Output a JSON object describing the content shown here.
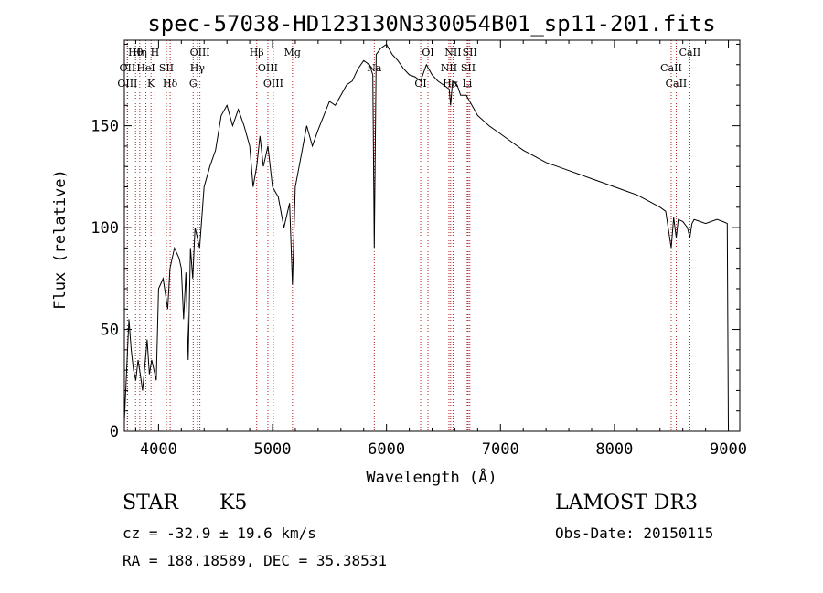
{
  "chart_data": {
    "type": "line",
    "title": "spec-57038-HD123130N330054B01_sp11-201.fits",
    "xlabel": "Wavelength (Å)",
    "ylabel": "Flux (relative)",
    "xlim": [
      3700,
      9100
    ],
    "ylim": [
      0,
      192
    ],
    "x_ticks": [
      4000,
      5000,
      6000,
      7000,
      8000,
      9000
    ],
    "y_ticks": [
      0,
      50,
      100,
      150
    ],
    "grid": false,
    "series": [
      {
        "name": "flux",
        "x": [
          3700,
          3720,
          3740,
          3760,
          3780,
          3800,
          3820,
          3840,
          3860,
          3880,
          3900,
          3920,
          3940,
          3960,
          3980,
          4000,
          4040,
          4080,
          4100,
          4140,
          4180,
          4200,
          4220,
          4240,
          4260,
          4280,
          4300,
          4320,
          4340,
          4360,
          4400,
          4450,
          4500,
          4550,
          4600,
          4650,
          4700,
          4750,
          4800,
          4830,
          4861,
          4890,
          4920,
          4960,
          5000,
          5050,
          5100,
          5150,
          5175,
          5200,
          5250,
          5300,
          5350,
          5400,
          5450,
          5500,
          5550,
          5600,
          5650,
          5700,
          5750,
          5800,
          5850,
          5880,
          5893,
          5910,
          5950,
          6000,
          6050,
          6100,
          6150,
          6200,
          6250,
          6300,
          6350,
          6400,
          6450,
          6500,
          6550,
          6563,
          6580,
          6620,
          6650,
          6700,
          6750,
          6800,
          6900,
          7000,
          7100,
          7200,
          7300,
          7400,
          7500,
          7600,
          7700,
          7800,
          7900,
          8000,
          8100,
          8200,
          8300,
          8400,
          8450,
          8498,
          8520,
          8542,
          8560,
          8600,
          8640,
          8662,
          8680,
          8700,
          8750,
          8800,
          8850,
          8900,
          8950,
          8990,
          9000
        ],
        "values": [
          5,
          30,
          55,
          40,
          30,
          25,
          35,
          28,
          20,
          32,
          45,
          28,
          35,
          30,
          25,
          70,
          75,
          60,
          80,
          90,
          85,
          80,
          55,
          78,
          35,
          90,
          75,
          100,
          95,
          90,
          120,
          130,
          138,
          155,
          160,
          150,
          158,
          150,
          140,
          120,
          130,
          145,
          130,
          140,
          120,
          115,
          100,
          112,
          72,
          120,
          135,
          150,
          140,
          148,
          155,
          162,
          160,
          165,
          170,
          172,
          178,
          182,
          180,
          175,
          90,
          185,
          188,
          190,
          185,
          182,
          178,
          175,
          174,
          172,
          180,
          175,
          172,
          170,
          168,
          160,
          172,
          170,
          165,
          165,
          160,
          155,
          150,
          146,
          142,
          138,
          135,
          132,
          130,
          128,
          126,
          124,
          122,
          120,
          118,
          116,
          113,
          110,
          108,
          90,
          105,
          95,
          104,
          103,
          100,
          95,
          102,
          104,
          103,
          102,
          103,
          104,
          103,
          102,
          2
        ]
      }
    ],
    "lines": [
      {
        "label": "Hθ",
        "wavelength": 3798
      },
      {
        "label": "OII",
        "wavelength": 3727
      },
      {
        "label": "OIII",
        "wavelength": 3727
      },
      {
        "label": "Hη",
        "wavelength": 3835
      },
      {
        "label": "HeI",
        "wavelength": 3889
      },
      {
        "label": "K",
        "wavelength": 3934
      },
      {
        "label": "H",
        "wavelength": 3968
      },
      {
        "label": "SII",
        "wavelength": 4069
      },
      {
        "label": "Hδ",
        "wavelength": 4102
      },
      {
        "label": "OIII",
        "wavelength": 4363
      },
      {
        "label": "Hγ",
        "wavelength": 4341
      },
      {
        "label": "G",
        "wavelength": 4304
      },
      {
        "label": "Hβ",
        "wavelength": 4861
      },
      {
        "label": "OIII",
        "wavelength": 4959
      },
      {
        "label": "OIII",
        "wavelength": 5007
      },
      {
        "label": "Mg",
        "wavelength": 5175
      },
      {
        "label": "Na",
        "wavelength": 5893
      },
      {
        "label": "OI",
        "wavelength": 6300
      },
      {
        "label": "OI",
        "wavelength": 6364
      },
      {
        "label": "NII",
        "wavelength": 6548
      },
      {
        "label": "Hα",
        "wavelength": 6563
      },
      {
        "label": "NII",
        "wavelength": 6584
      },
      {
        "label": "SII",
        "wavelength": 6717
      },
      {
        "label": "Li",
        "wavelength": 6708
      },
      {
        "label": "SII",
        "wavelength": 6731
      },
      {
        "label": "CaII",
        "wavelength": 8498
      },
      {
        "label": "CaII",
        "wavelength": 8542
      },
      {
        "label": "CaII",
        "wavelength": 8662
      }
    ]
  },
  "footer": {
    "class_label": "STAR",
    "subclass": "K5",
    "survey": "LAMOST DR3",
    "cz": "cz = -32.9 ± 19.6 km/s",
    "obs_date": "Obs-Date: 20150115",
    "coords": "RA = 188.18589, DEC =  35.38531"
  },
  "colors": {
    "line_marker": "#b22222",
    "spectrum": "#000000"
  }
}
